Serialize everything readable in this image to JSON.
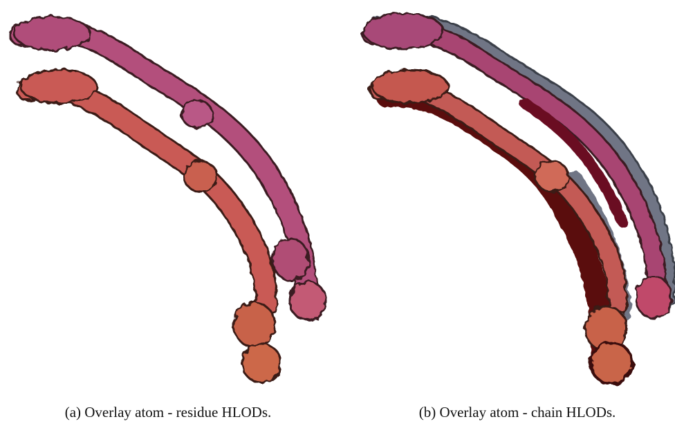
{
  "figures": [
    {
      "caption": "(a) Overlay atom - residue HLODs."
    },
    {
      "caption": "(b) Overlay atom - chain HLODs."
    }
  ]
}
